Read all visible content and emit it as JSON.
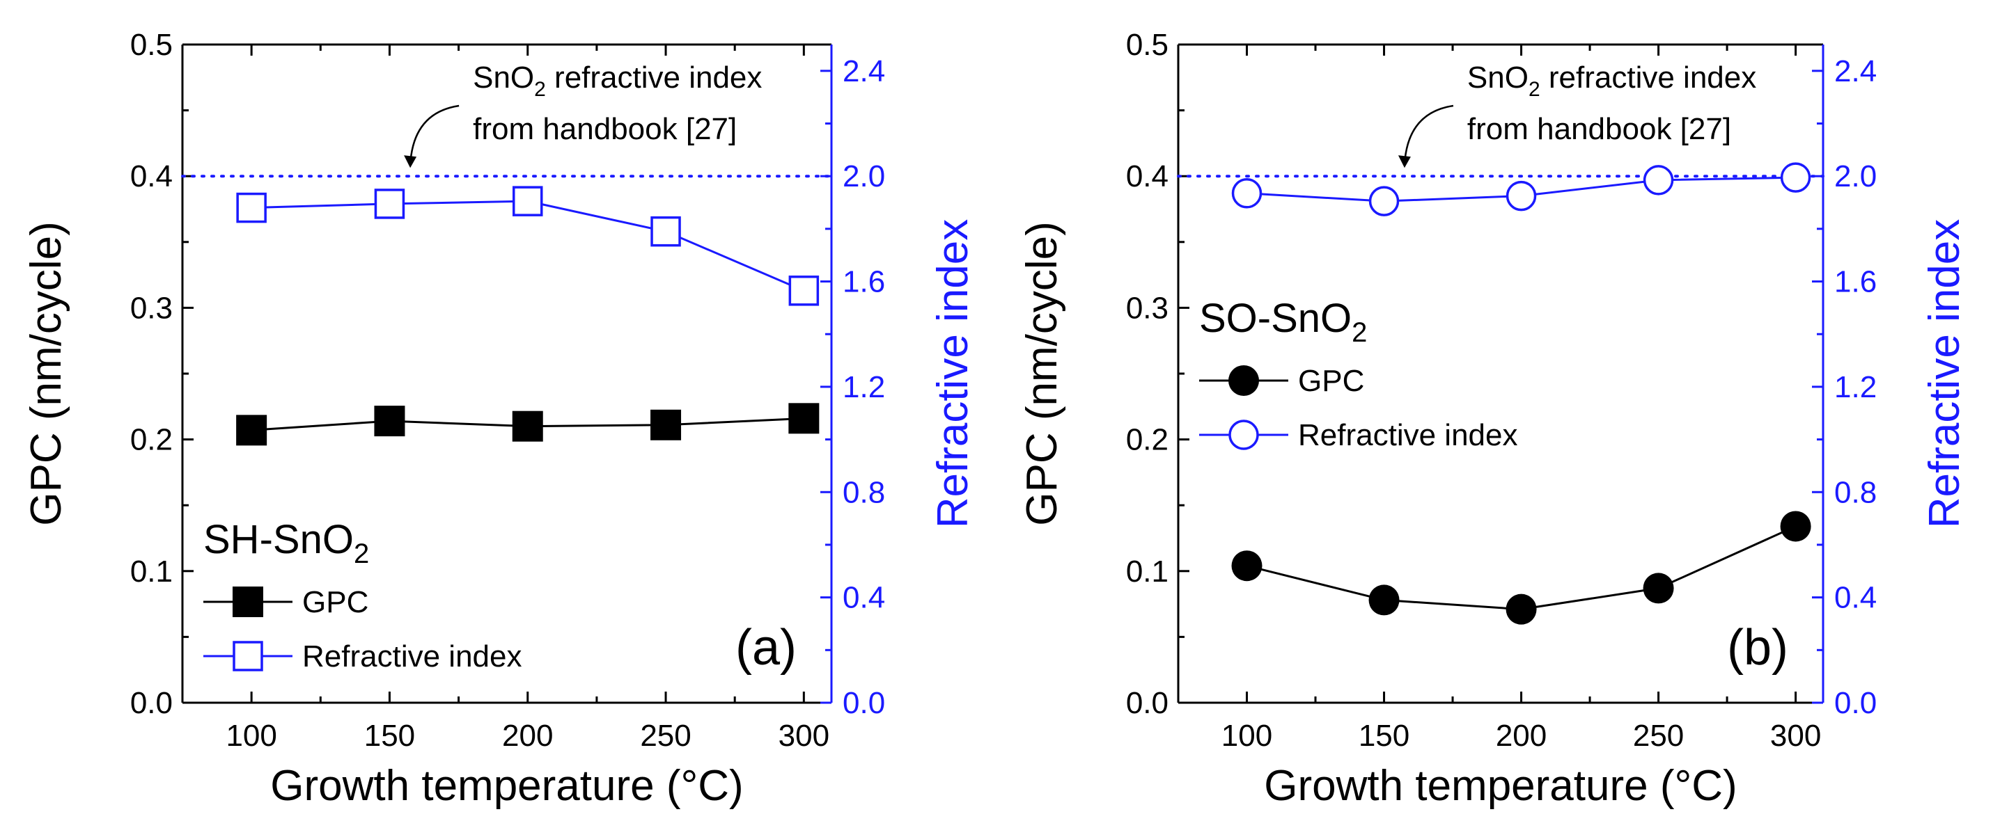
{
  "chart_data": [
    {
      "type": "line",
      "panel_label": "(a)",
      "sample_label": {
        "prefix": "SH-SnO",
        "sub": "2"
      },
      "xlabel": "Growth temperature (°C)",
      "ylabel": "GPC (nm/cycle)",
      "y2label": "Refractive index",
      "xlim": [
        75,
        310
      ],
      "ylim": [
        0,
        0.5
      ],
      "y2lim": [
        0,
        2.5
      ],
      "xticks": [
        100,
        150,
        200,
        250,
        300
      ],
      "yticks": [
        0.0,
        0.1,
        0.2,
        0.3,
        0.4,
        0.5
      ],
      "y2ticks": [
        0.0,
        0.4,
        0.8,
        1.2,
        1.6,
        2.0,
        2.4
      ],
      "xtick_labels": [
        "100",
        "150",
        "200",
        "250",
        "300"
      ],
      "ytick_labels": [
        "0.0",
        "0.1",
        "0.2",
        "0.3",
        "0.4",
        "0.5"
      ],
      "y2tick_labels": [
        "0.0",
        "0.4",
        "0.8",
        "1.2",
        "1.6",
        "2.0",
        "2.4"
      ],
      "x": [
        100,
        150,
        200,
        250,
        300
      ],
      "series": [
        {
          "name": "GPC",
          "axis": "left",
          "marker": "square-filled",
          "color": "#000000",
          "values": [
            0.207,
            0.214,
            0.21,
            0.211,
            0.216
          ]
        },
        {
          "name": "Refractive index",
          "axis": "right",
          "marker": "square-open",
          "color": "#1a1aff",
          "values": [
            1.88,
            1.895,
            1.905,
            1.79,
            1.565
          ]
        }
      ],
      "reference_line": {
        "axis": "right",
        "value": 2.0,
        "style": "dotted",
        "color": "#1a1aff"
      },
      "annotation": {
        "line1_prefix": "SnO",
        "line1_sub": "2",
        "line1_suffix": " refractive index",
        "line2": "from handbook [27]",
        "arrow_to_x": 160
      },
      "legend_position": "lower-left"
    },
    {
      "type": "line",
      "panel_label": "(b)",
      "sample_label": {
        "prefix": "SO-SnO",
        "sub": "2"
      },
      "xlabel": "Growth temperature (°C)",
      "ylabel": "GPC (nm/cycle)",
      "y2label": "Refractive index",
      "xlim": [
        75,
        310
      ],
      "ylim": [
        0,
        0.5
      ],
      "y2lim": [
        0,
        2.5
      ],
      "xticks": [
        100,
        150,
        200,
        250,
        300
      ],
      "yticks": [
        0.0,
        0.1,
        0.2,
        0.3,
        0.4,
        0.5
      ],
      "y2ticks": [
        0.0,
        0.4,
        0.8,
        1.2,
        1.6,
        2.0,
        2.4
      ],
      "xtick_labels": [
        "100",
        "150",
        "200",
        "250",
        "300"
      ],
      "ytick_labels": [
        "0.0",
        "0.1",
        "0.2",
        "0.3",
        "0.4",
        "0.5"
      ],
      "y2tick_labels": [
        "0.0",
        "0.4",
        "0.8",
        "1.2",
        "1.6",
        "2.0",
        "2.4"
      ],
      "x": [
        100,
        150,
        200,
        250,
        300
      ],
      "series": [
        {
          "name": "GPC",
          "axis": "left",
          "marker": "circle-filled",
          "color": "#000000",
          "values": [
            0.104,
            0.078,
            0.071,
            0.087,
            0.134
          ]
        },
        {
          "name": "Refractive index",
          "axis": "right",
          "marker": "circle-open",
          "color": "#1a1aff",
          "values": [
            1.935,
            1.905,
            1.925,
            1.985,
            1.995
          ]
        }
      ],
      "reference_line": {
        "axis": "right",
        "value": 2.0,
        "style": "dotted",
        "color": "#1a1aff"
      },
      "annotation": {
        "line1_prefix": "SnO",
        "line1_sub": "2",
        "line1_suffix": " refractive index",
        "line2": "from handbook [27]",
        "arrow_to_x": 160
      },
      "legend_position": "middle-left"
    }
  ]
}
